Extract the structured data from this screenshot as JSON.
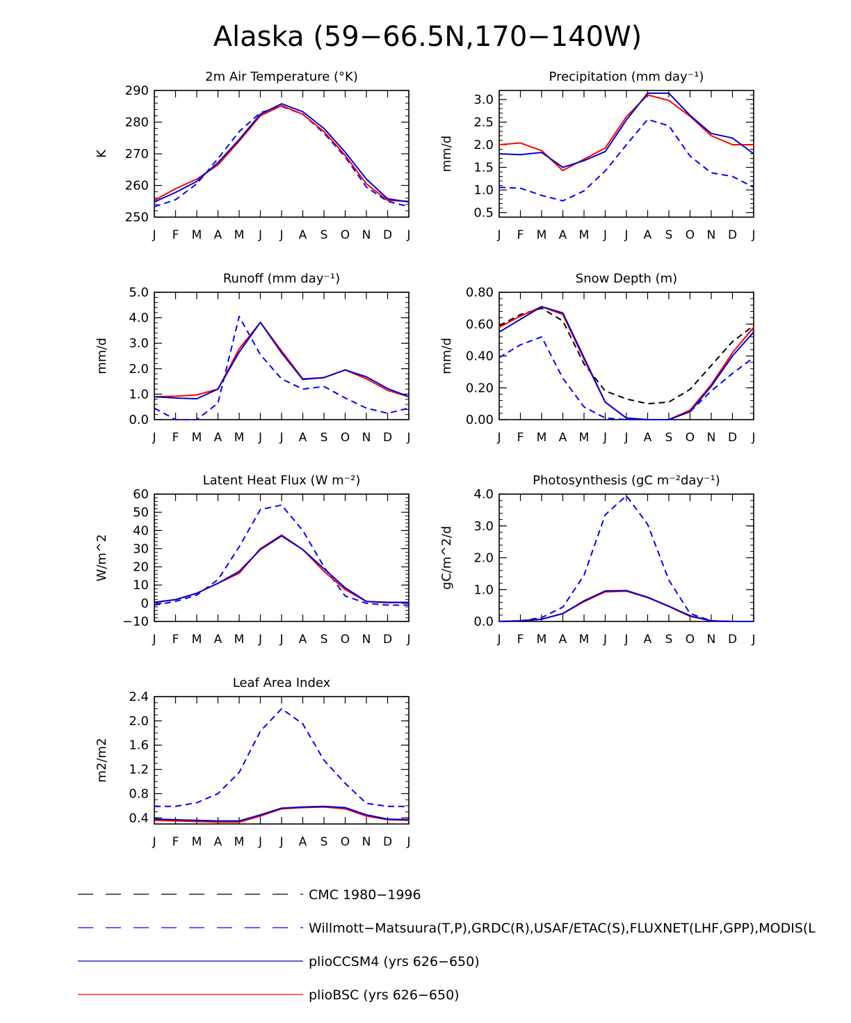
{
  "page": {
    "title": "Alaska (59−66.5N,170−140W)"
  },
  "months": [
    "J",
    "F",
    "M",
    "A",
    "M",
    "J",
    "J",
    "A",
    "S",
    "O",
    "N",
    "D",
    "J"
  ],
  "styles": {
    "cmc": {
      "color": "#000000",
      "dash": "dashed"
    },
    "obs": {
      "color": "#0000ff",
      "dash": "dashed"
    },
    "ccsm4": {
      "color": "#0000cc",
      "dash": "solid"
    },
    "bsc": {
      "color": "#ff0000",
      "dash": "solid"
    }
  },
  "legend": [
    {
      "key": "cmc",
      "label": "CMC 1980−1996"
    },
    {
      "key": "obs",
      "label": "Willmott−Matsuura(T,P),GRDC(R),USAF/ETAC(S),FLUXNET(LHF,GPP),MODIS(L"
    },
    {
      "key": "ccsm4",
      "label": "plioCCSM4 (yrs 626−650)"
    },
    {
      "key": "bsc",
      "label": "plioBSC (yrs 626−650)"
    }
  ],
  "chart_data": [
    {
      "id": "temp",
      "type": "line",
      "title": "2m Air Temperature (°K)",
      "ylabel": "K",
      "ylim": [
        250,
        290
      ],
      "yticks": [
        250,
        260,
        270,
        280,
        290
      ],
      "ytick_labels": [
        "250",
        "260",
        "270",
        "280",
        "290"
      ],
      "minor_step": 2,
      "series": [
        {
          "key": "obs",
          "name": "Willmott-Matsuura",
          "values": [
            253.3,
            255.5,
            260.5,
            268.5,
            277.0,
            283.0,
            285.0,
            282.5,
            276.5,
            269.0,
            259.5,
            255.0,
            253.3
          ]
        },
        {
          "key": "bsc",
          "name": "plioBSC",
          "values": [
            255.3,
            259.0,
            262.0,
            266.5,
            274.0,
            282.0,
            285.2,
            282.5,
            277.0,
            269.5,
            260.5,
            255.3,
            255.0
          ]
        },
        {
          "key": "ccsm4",
          "name": "plioCCSM4",
          "values": [
            254.8,
            257.8,
            261.3,
            267.2,
            274.5,
            282.5,
            285.8,
            283.3,
            278.0,
            270.5,
            262.0,
            255.8,
            254.8
          ]
        }
      ]
    },
    {
      "id": "precip",
      "type": "line",
      "title": "Precipitation (mm day⁻¹)",
      "ylabel": "mm/d",
      "ylim": [
        0.4,
        3.2
      ],
      "yticks": [
        0.5,
        1.0,
        1.5,
        2.0,
        2.5,
        3.0
      ],
      "ytick_labels": [
        "0.5",
        "1.0",
        "1.5",
        "2.0",
        "2.5",
        "3.0"
      ],
      "minor_step": 0.1,
      "series": [
        {
          "key": "obs",
          "name": "Willmott-Matsuura",
          "values": [
            1.06,
            1.04,
            0.88,
            0.76,
            0.98,
            1.42,
            2.0,
            2.56,
            2.42,
            1.75,
            1.38,
            1.3,
            1.06
          ]
        },
        {
          "key": "bsc",
          "name": "plioBSC",
          "values": [
            2.0,
            2.04,
            1.87,
            1.43,
            1.68,
            1.93,
            2.62,
            3.1,
            2.98,
            2.63,
            2.2,
            2.0,
            2.0
          ]
        },
        {
          "key": "ccsm4",
          "name": "plioCCSM4",
          "values": [
            1.8,
            1.78,
            1.83,
            1.5,
            1.65,
            1.85,
            2.55,
            3.14,
            3.14,
            2.65,
            2.25,
            2.15,
            1.8
          ]
        }
      ]
    },
    {
      "id": "runoff",
      "type": "line",
      "title": "Runoff (mm day⁻¹)",
      "ylabel": "mm/d",
      "ylim": [
        0,
        5
      ],
      "yticks": [
        0,
        1,
        2,
        3,
        4,
        5
      ],
      "ytick_labels": [
        "0.0",
        "1.0",
        "2.0",
        "3.0",
        "4.0",
        "5.0"
      ],
      "minor_step": 0.2,
      "series": [
        {
          "key": "obs",
          "name": "GRDC",
          "values": [
            0.45,
            0.0,
            0.0,
            0.65,
            4.05,
            2.55,
            1.6,
            1.2,
            1.3,
            0.85,
            0.45,
            0.25,
            0.45
          ]
        },
        {
          "key": "bsc",
          "name": "plioBSC",
          "values": [
            0.9,
            0.92,
            0.97,
            1.2,
            2.78,
            3.82,
            2.7,
            1.6,
            1.65,
            1.95,
            1.6,
            1.15,
            0.9
          ]
        },
        {
          "key": "ccsm4",
          "name": "plioCCSM4",
          "values": [
            0.9,
            0.85,
            0.82,
            1.2,
            2.65,
            3.82,
            2.62,
            1.58,
            1.65,
            1.95,
            1.68,
            1.22,
            0.9
          ]
        }
      ]
    },
    {
      "id": "snow",
      "type": "line",
      "title": "Snow Depth (m)",
      "ylabel": "mm/d",
      "ylim": [
        0,
        0.8
      ],
      "yticks": [
        0,
        0.2,
        0.4,
        0.6,
        0.8
      ],
      "ytick_labels": [
        "0.00",
        "0.20",
        "0.40",
        "0.60",
        "0.80"
      ],
      "minor_step": 0.04,
      "series": [
        {
          "key": "cmc",
          "name": "CMC",
          "values": [
            0.59,
            0.66,
            0.7,
            0.62,
            0.35,
            0.18,
            0.13,
            0.1,
            0.11,
            0.19,
            0.34,
            0.49,
            0.59
          ]
        },
        {
          "key": "obs",
          "name": "USAF/ETAC",
          "values": [
            0.39,
            0.47,
            0.52,
            0.26,
            0.08,
            0.01,
            0.0,
            0.0,
            0.0,
            0.05,
            0.18,
            0.29,
            0.39
          ]
        },
        {
          "key": "bsc",
          "name": "plioBSC",
          "values": [
            0.58,
            0.65,
            0.71,
            0.66,
            0.38,
            0.11,
            0.01,
            0.0,
            0.0,
            0.06,
            0.22,
            0.42,
            0.58
          ]
        },
        {
          "key": "ccsm4",
          "name": "plioCCSM4",
          "values": [
            0.55,
            0.63,
            0.71,
            0.67,
            0.39,
            0.11,
            0.01,
            0.0,
            0.0,
            0.05,
            0.21,
            0.4,
            0.55
          ]
        }
      ]
    },
    {
      "id": "lhf",
      "type": "line",
      "title": "Latent Heat Flux (W m⁻²)",
      "ylabel": "W/m^2",
      "ylim": [
        -10,
        60
      ],
      "yticks": [
        -10,
        0,
        10,
        20,
        30,
        40,
        50,
        60
      ],
      "ytick_labels": [
        "−10",
        "0",
        "10",
        "20",
        "30",
        "40",
        "50",
        "60"
      ],
      "minor_step": 2,
      "series": [
        {
          "key": "obs",
          "name": "FLUXNET",
          "values": [
            -1.0,
            1.0,
            4.5,
            13.0,
            31.0,
            51.5,
            54.0,
            40.0,
            20.0,
            4.0,
            0.0,
            -1.0,
            -1.0
          ]
        },
        {
          "key": "bsc",
          "name": "plioBSC",
          "values": [
            0.5,
            2.0,
            5.5,
            11.0,
            16.5,
            30.0,
            37.5,
            29.5,
            17.5,
            7.5,
            1.0,
            0.3,
            0.5
          ]
        },
        {
          "key": "ccsm4",
          "name": "plioCCSM4",
          "values": [
            0.5,
            2.0,
            5.5,
            11.0,
            17.5,
            29.5,
            37.0,
            29.5,
            19.0,
            8.5,
            1.0,
            0.5,
            0.5
          ]
        }
      ]
    },
    {
      "id": "gpp",
      "type": "line",
      "title": "Photosynthesis (gC m⁻²day⁻¹)",
      "ylabel": "gC/m^2/d",
      "ylim": [
        0,
        4
      ],
      "yticks": [
        0,
        1,
        2,
        3,
        4
      ],
      "ytick_labels": [
        "0.0",
        "1.0",
        "2.0",
        "3.0",
        "4.0"
      ],
      "minor_step": 0.2,
      "series": [
        {
          "key": "obs",
          "name": "FLUXNET",
          "values": [
            0.0,
            0.02,
            0.12,
            0.45,
            1.45,
            3.35,
            3.95,
            3.05,
            1.3,
            0.25,
            0.02,
            0.0,
            0.0
          ]
        },
        {
          "key": "bsc",
          "name": "plioBSC",
          "values": [
            0.0,
            0.02,
            0.07,
            0.25,
            0.62,
            0.93,
            0.95,
            0.75,
            0.47,
            0.16,
            0.02,
            0.0,
            0.0
          ]
        },
        {
          "key": "ccsm4",
          "name": "plioCCSM4",
          "values": [
            0.0,
            0.02,
            0.07,
            0.25,
            0.65,
            0.96,
            0.97,
            0.76,
            0.48,
            0.18,
            0.02,
            0.0,
            0.0
          ]
        }
      ]
    },
    {
      "id": "lai",
      "type": "line",
      "title": "Leaf Area Index",
      "ylabel": "m2/m2",
      "ylim": [
        0.3,
        2.4
      ],
      "yticks": [
        0.4,
        0.8,
        1.2,
        1.6,
        2.0,
        2.4
      ],
      "ytick_labels": [
        "0.4",
        "0.8",
        "1.2",
        "1.6",
        "2.0",
        "2.4"
      ],
      "minor_step": 0.1,
      "series": [
        {
          "key": "obs",
          "name": "MODIS",
          "values": [
            0.59,
            0.59,
            0.65,
            0.8,
            1.15,
            1.83,
            2.2,
            1.95,
            1.35,
            0.97,
            0.64,
            0.59,
            0.59
          ]
        },
        {
          "key": "bsc",
          "name": "plioBSC",
          "values": [
            0.36,
            0.35,
            0.34,
            0.33,
            0.33,
            0.43,
            0.55,
            0.57,
            0.58,
            0.55,
            0.43,
            0.37,
            0.36
          ]
        },
        {
          "key": "ccsm4",
          "name": "plioCCSM4",
          "values": [
            0.38,
            0.37,
            0.36,
            0.35,
            0.35,
            0.45,
            0.56,
            0.58,
            0.59,
            0.57,
            0.45,
            0.38,
            0.37
          ]
        }
      ]
    }
  ]
}
